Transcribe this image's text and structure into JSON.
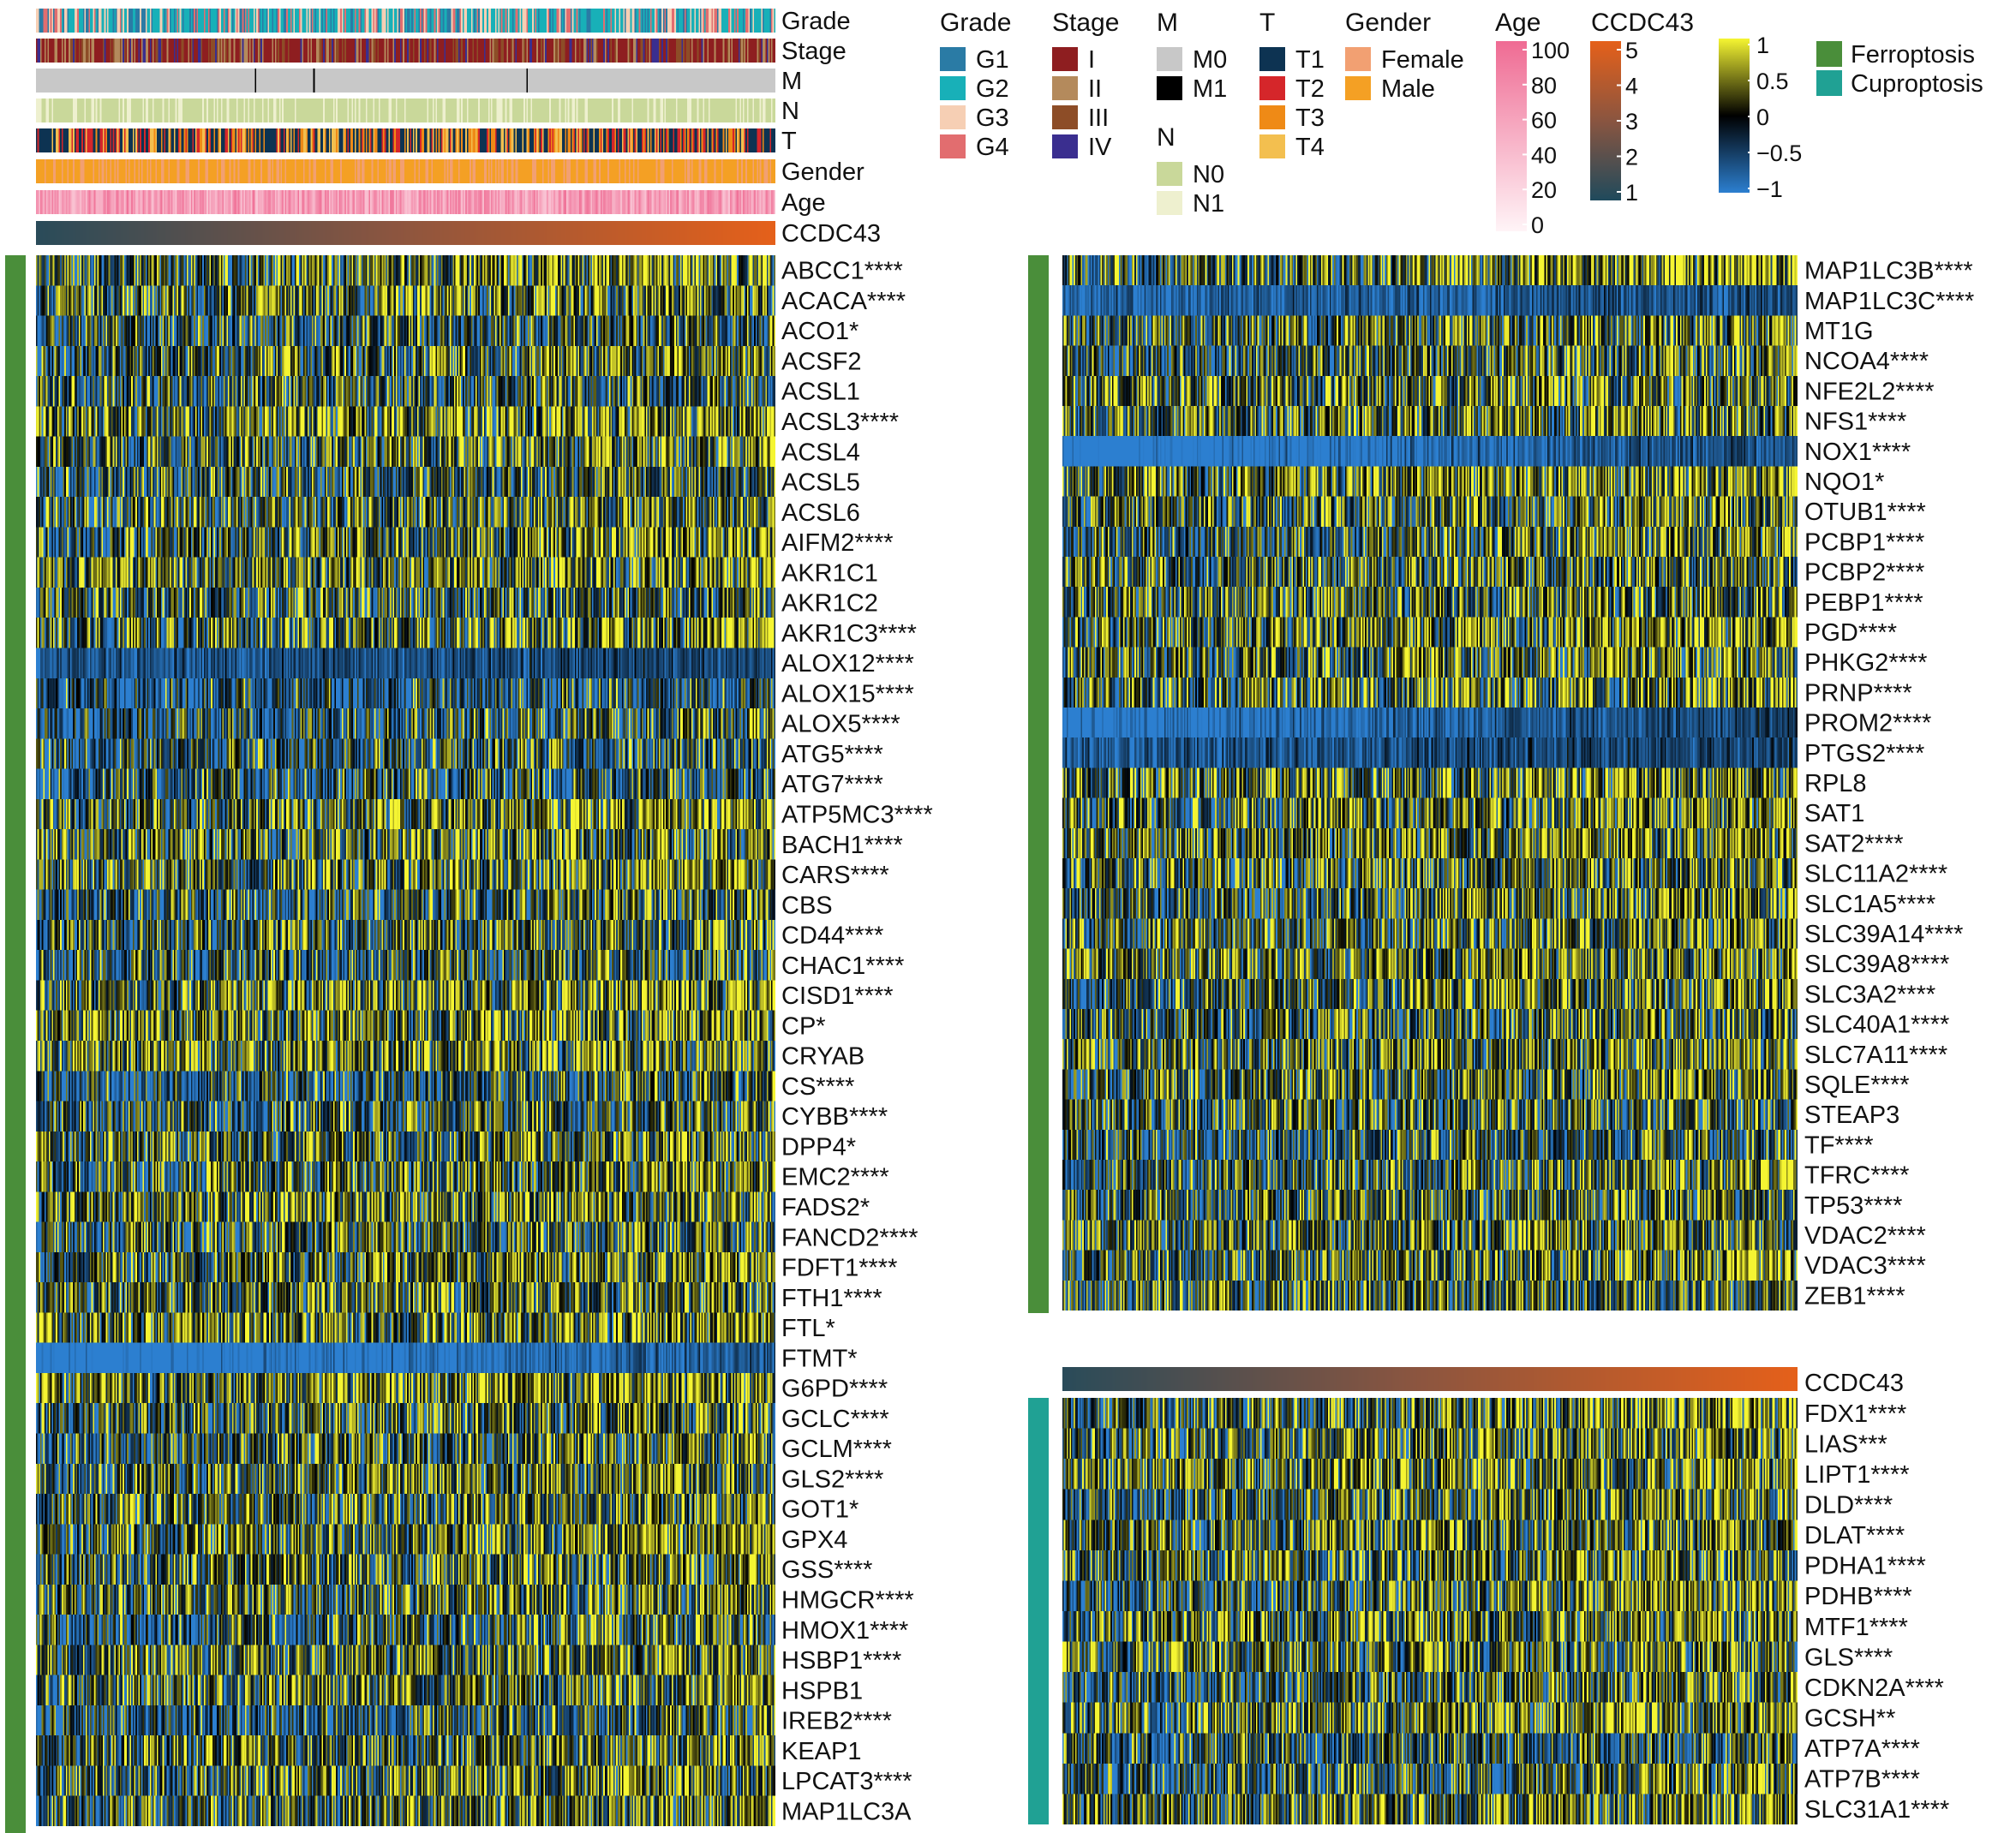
{
  "chart_data": {
    "type": "heatmap",
    "title": "",
    "description_note": "Expression heatmap of ferroptosis and cuproptosis genes ordered by CCDC43 expression, with clinical annotation tracks",
    "annotation_tracks": [
      "Grade",
      "Stage",
      "M",
      "N",
      "T",
      "Gender",
      "Age",
      "CCDC43"
    ],
    "legends": {
      "grade": {
        "title": "Grade",
        "labels": [
          "G1",
          "G2",
          "G3",
          "G4"
        ],
        "colors": [
          "#2a7ba5",
          "#18b0b8",
          "#f6cfb4",
          "#e26d6f"
        ]
      },
      "stage": {
        "title": "Stage",
        "labels": [
          "I",
          "II",
          "III",
          "IV"
        ],
        "colors": [
          "#8e1e20",
          "#b48a5c",
          "#8d4d27",
          "#3a2e8f"
        ]
      },
      "m": {
        "title": "M",
        "labels": [
          "M0",
          "M1"
        ],
        "colors": [
          "#c8c8c8",
          "#000000"
        ]
      },
      "n": {
        "title": "N",
        "labels": [
          "N0",
          "N1"
        ],
        "colors": [
          "#c9d89a",
          "#eef0cf"
        ]
      },
      "t": {
        "title": "T",
        "labels": [
          "T1",
          "T2",
          "T3",
          "T4"
        ],
        "colors": [
          "#0d3352",
          "#d5262a",
          "#ef8a16",
          "#f3bf4f"
        ]
      },
      "gender": {
        "title": "Gender",
        "labels": [
          "Female",
          "Male"
        ],
        "colors": [
          "#f2a072",
          "#f4a024"
        ]
      },
      "age": {
        "title": "Age",
        "ticks": [
          "100",
          "80",
          "60",
          "40",
          "20",
          "0"
        ],
        "color_high": "#ef6b93",
        "color_low": "#fff4f7"
      },
      "ccdc43": {
        "title": "CCDC43",
        "ticks": [
          "5",
          "4",
          "3",
          "2",
          "1"
        ],
        "color_high": "#e5601a",
        "color_mid": "#8a5540",
        "color_low": "#1f4a5c"
      },
      "expression": {
        "title": "",
        "ticks": [
          "1",
          "0.5",
          "0",
          "−0.5",
          "−1"
        ],
        "color_high": "#f5f532",
        "color_mid": "#000000",
        "color_low": "#2c7fd0"
      },
      "gene_sets": {
        "labels": [
          "Ferroptosis",
          "Cuproptosis"
        ],
        "colors": [
          "#4a8e3a",
          "#20a194"
        ]
      }
    },
    "left_panel_genes": [
      "ABCC1****",
      "ACACA****",
      "ACO1*",
      "ACSF2",
      "ACSL1",
      "ACSL3****",
      "ACSL4",
      "ACSL5",
      "ACSL6",
      "AIFM2****",
      "AKR1C1",
      "AKR1C2",
      "AKR1C3****",
      "ALOX12****",
      "ALOX15****",
      "ALOX5****",
      "ATG5****",
      "ATG7****",
      "ATP5MC3****",
      "BACH1****",
      "CARS****",
      "CBS",
      "CD44****",
      "CHAC1****",
      "CISD1****",
      "CP*",
      "CRYAB",
      "CS****",
      "CYBB****",
      "DPP4*",
      "EMC2****",
      "FADS2*",
      "FANCD2****",
      "FDFT1****",
      "FTH1****",
      "FTL*",
      "FTMT*",
      "G6PD****",
      "GCLC****",
      "GCLM****",
      "GLS2****",
      "GOT1*",
      "GPX4",
      "GSS****",
      "HMGCR****",
      "HMOX1****",
      "HSBP1****",
      "HSPB1",
      "IREB2****",
      "KEAP1",
      "LPCAT3****",
      "MAP1LC3A"
    ],
    "right_ferroptosis_genes": [
      "MAP1LC3B****",
      "MAP1LC3C****",
      "MT1G",
      "NCOA4****",
      "NFE2L2****",
      "NFS1****",
      "NOX1****",
      "NQO1*",
      "OTUB1****",
      "PCBP1****",
      "PCBP2****",
      "PEBP1****",
      "PGD****",
      "PHKG2****",
      "PRNP****",
      "PROM2****",
      "PTGS2****",
      "RPL8",
      "SAT1",
      "SAT2****",
      "SLC11A2****",
      "SLC1A5****",
      "SLC39A14****",
      "SLC39A8****",
      "SLC3A2****",
      "SLC40A1****",
      "SLC7A11****",
      "SQLE****",
      "STEAP3",
      "TF****",
      "TFRC****",
      "TP53****",
      "VDAC2****",
      "VDAC3****",
      "ZEB1****"
    ],
    "cuproptosis_panel_label": "CCDC43",
    "cuproptosis_genes": [
      "FDX1****",
      "LIAS***",
      "LIPT1****",
      "DLD****",
      "DLAT****",
      "PDHA1****",
      "PDHB****",
      "MTF1****",
      "GLS****",
      "CDKN2A****",
      "GCSH**",
      "ATP7A****",
      "ATP7B****",
      "SLC31A1****"
    ],
    "row_means_left": [
      0.2,
      0.1,
      -0.2,
      0.1,
      -0.1,
      0.3,
      0.1,
      -0.1,
      0.0,
      0.1,
      0.2,
      0.0,
      0.1,
      -0.6,
      -0.5,
      -0.3,
      -0.2,
      -0.3,
      0.2,
      0.1,
      0.2,
      -0.1,
      -0.1,
      -0.1,
      0.2,
      0.3,
      0.3,
      -0.2,
      -0.1,
      0.2,
      0.1,
      0.2,
      -0.1,
      0.1,
      0.1,
      0.3,
      -1.0,
      0.3,
      0.0,
      0.0,
      0.1,
      0.1,
      0.2,
      0.1,
      0.0,
      -0.2,
      0.2,
      0.1,
      -0.3,
      0.1,
      0.1,
      0.1
    ],
    "row_means_right": [
      0.3,
      -0.7,
      0.1,
      0.0,
      0.2,
      0.1,
      -0.9,
      0.3,
      0.1,
      0.0,
      0.0,
      0.1,
      0.2,
      0.1,
      0.1,
      -0.8,
      -0.6,
      0.2,
      0.1,
      0.2,
      0.1,
      0.0,
      0.1,
      0.2,
      0.1,
      0.0,
      0.1,
      0.1,
      0.0,
      -0.2,
      0.1,
      0.0,
      0.1,
      0.2,
      0.0
    ],
    "row_means_cupro": [
      0.1,
      0.1,
      0.2,
      0.0,
      0.1,
      0.1,
      0.0,
      0.1,
      0.1,
      -0.1,
      0.3,
      -0.2,
      -0.1,
      0.1
    ]
  }
}
